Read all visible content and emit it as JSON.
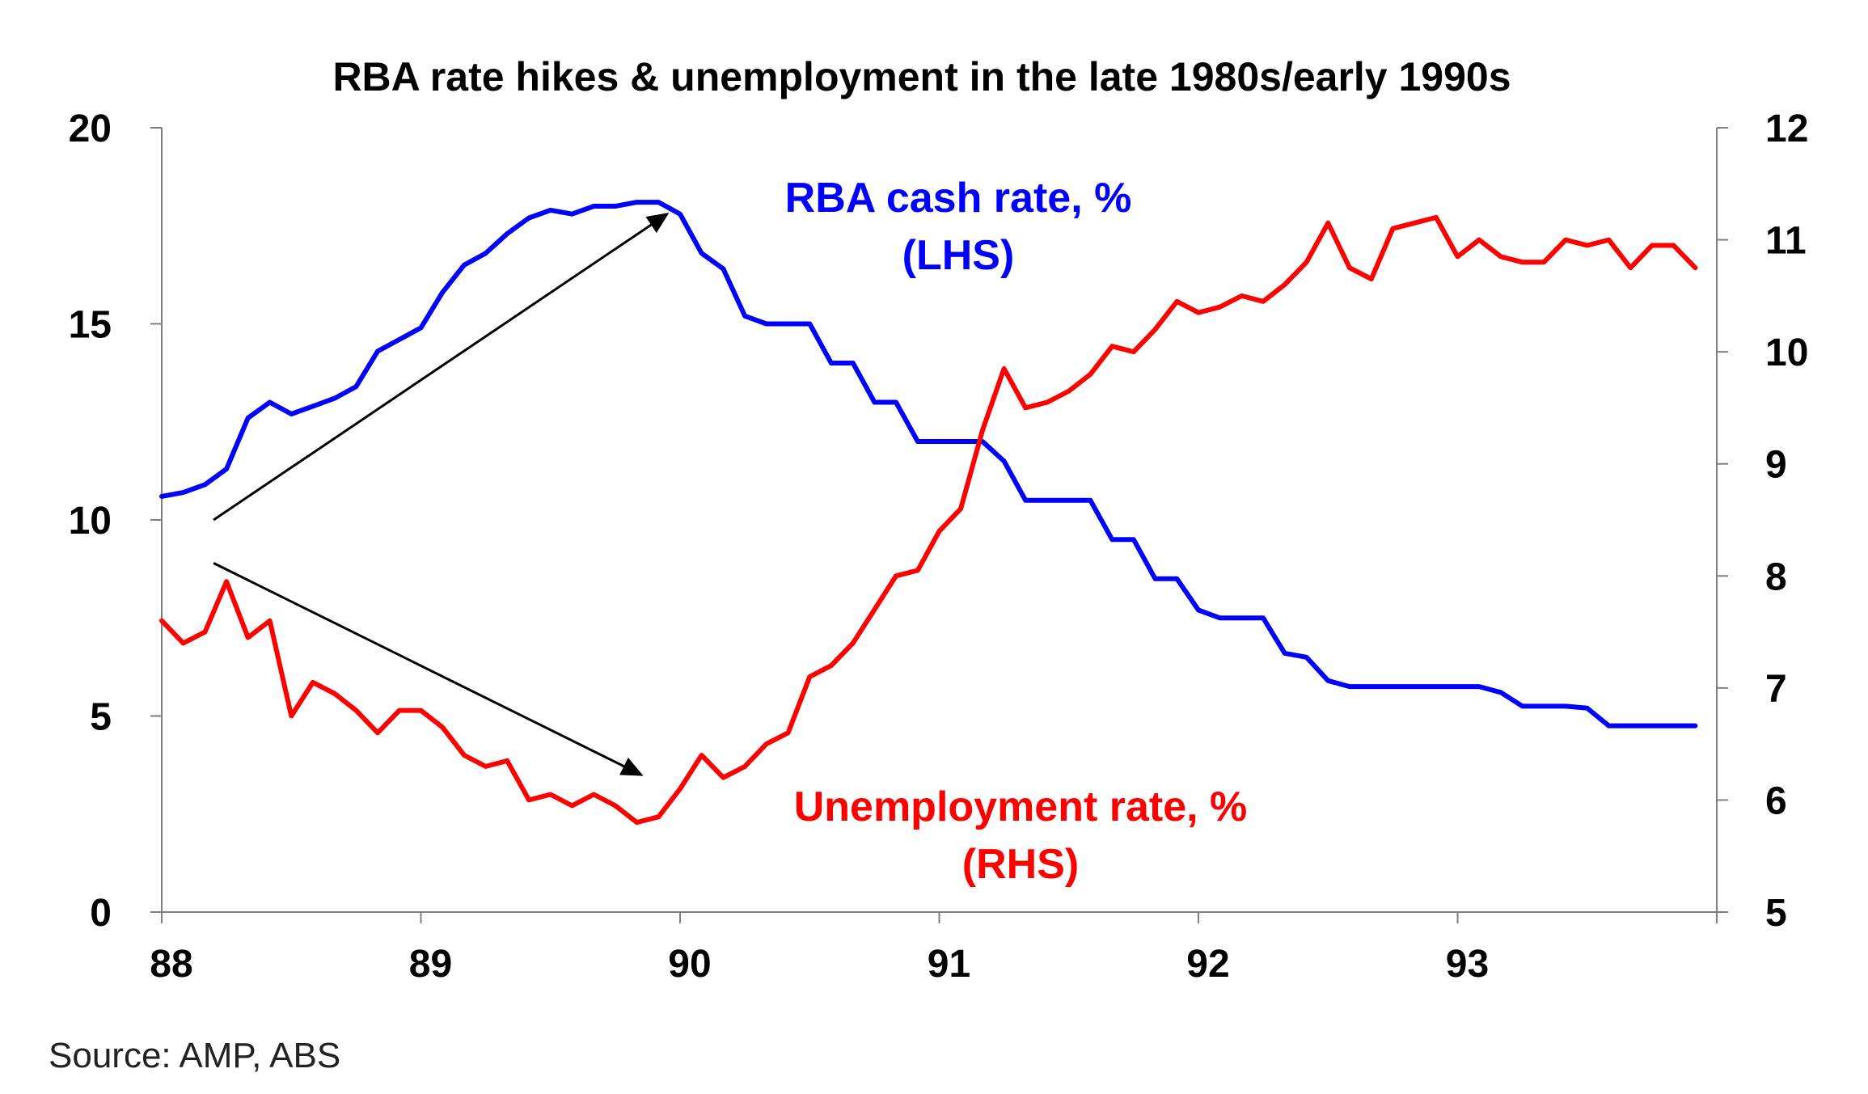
{
  "chart_data": {
    "type": "line",
    "title": "RBA rate hikes & unemployment in the late 1980s/early 1990s",
    "source": "Source: AMP, ABS",
    "x_ticks": [
      "88",
      "89",
      "90",
      "91",
      "92",
      "93"
    ],
    "xlim": [
      1988.0,
      1994.0
    ],
    "left_axis": {
      "ylim": [
        0,
        20
      ],
      "ticks": [
        "0",
        "5",
        "10",
        "15",
        "20"
      ]
    },
    "right_axis": {
      "ylim": [
        5,
        12
      ],
      "ticks": [
        "5",
        "6",
        "7",
        "8",
        "9",
        "10",
        "11",
        "12"
      ]
    },
    "grid": false,
    "series": [
      {
        "name": "RBA cash rate, %",
        "label_line2": "(LHS)",
        "axis": "left",
        "color": "#0000ff",
        "x": [
          1988.0,
          1988.083,
          1988.167,
          1988.25,
          1988.333,
          1988.417,
          1988.5,
          1988.583,
          1988.667,
          1988.75,
          1988.833,
          1988.917,
          1989.0,
          1989.083,
          1989.167,
          1989.25,
          1989.333,
          1989.417,
          1989.5,
          1989.583,
          1989.667,
          1989.75,
          1989.833,
          1989.917,
          1990.0,
          1990.083,
          1990.167,
          1990.25,
          1990.333,
          1990.417,
          1990.5,
          1990.583,
          1990.667,
          1990.75,
          1990.833,
          1990.917,
          1991.0,
          1991.083,
          1991.167,
          1991.25,
          1991.333,
          1991.417,
          1991.5,
          1991.583,
          1991.667,
          1991.75,
          1991.833,
          1991.917,
          1992.0,
          1992.083,
          1992.167,
          1992.25,
          1992.333,
          1992.417,
          1992.5,
          1992.583,
          1992.667,
          1992.75,
          1992.833,
          1992.917,
          1993.0,
          1993.083,
          1993.167,
          1993.25,
          1993.333,
          1993.417,
          1993.5,
          1993.583,
          1993.667,
          1993.75,
          1993.833,
          1993.917
        ],
        "values": [
          10.6,
          10.7,
          10.9,
          11.3,
          12.6,
          13.0,
          12.7,
          12.9,
          13.1,
          13.4,
          14.3,
          14.6,
          14.9,
          15.8,
          16.5,
          16.8,
          17.3,
          17.7,
          17.9,
          17.8,
          18.0,
          18.0,
          18.1,
          18.1,
          17.8,
          16.8,
          16.4,
          15.2,
          15.0,
          15.0,
          15.0,
          14.0,
          14.0,
          13.0,
          13.0,
          12.0,
          12.0,
          12.0,
          12.0,
          11.5,
          10.5,
          10.5,
          10.5,
          10.5,
          9.5,
          9.5,
          8.5,
          8.5,
          7.7,
          7.5,
          7.5,
          7.5,
          6.6,
          6.5,
          5.9,
          5.75,
          5.75,
          5.75,
          5.75,
          5.75,
          5.75,
          5.75,
          5.6,
          5.25,
          5.25,
          5.25,
          5.2,
          4.75,
          4.75,
          4.75,
          4.75,
          4.75
        ]
      },
      {
        "name": "Unemployment rate, %",
        "label_line2": "(RHS)",
        "axis": "right",
        "color": "#ff0000",
        "x": [
          1988.0,
          1988.083,
          1988.167,
          1988.25,
          1988.333,
          1988.417,
          1988.5,
          1988.583,
          1988.667,
          1988.75,
          1988.833,
          1988.917,
          1989.0,
          1989.083,
          1989.167,
          1989.25,
          1989.333,
          1989.417,
          1989.5,
          1989.583,
          1989.667,
          1989.75,
          1989.833,
          1989.917,
          1990.0,
          1990.083,
          1990.167,
          1990.25,
          1990.333,
          1990.417,
          1990.5,
          1990.583,
          1990.667,
          1990.75,
          1990.833,
          1990.917,
          1991.0,
          1991.083,
          1991.167,
          1991.25,
          1991.333,
          1991.417,
          1991.5,
          1991.583,
          1991.667,
          1991.75,
          1991.833,
          1991.917,
          1992.0,
          1992.083,
          1992.167,
          1992.25,
          1992.333,
          1992.417,
          1992.5,
          1992.583,
          1992.667,
          1992.75,
          1992.833,
          1992.917,
          1993.0,
          1993.083,
          1993.167,
          1993.25,
          1993.333,
          1993.417,
          1993.5,
          1993.583,
          1993.667,
          1993.75,
          1993.833,
          1993.917
        ],
        "values": [
          7.6,
          7.4,
          7.5,
          7.95,
          7.45,
          7.6,
          6.75,
          7.05,
          6.95,
          6.8,
          6.6,
          6.8,
          6.8,
          6.65,
          6.4,
          6.3,
          6.35,
          6.0,
          6.05,
          5.95,
          6.05,
          5.95,
          5.8,
          5.85,
          6.1,
          6.4,
          6.2,
          6.3,
          6.5,
          6.6,
          7.1,
          7.2,
          7.4,
          7.7,
          8.0,
          8.05,
          8.4,
          8.6,
          9.3,
          9.85,
          9.5,
          9.55,
          9.65,
          9.8,
          10.05,
          10.0,
          10.2,
          10.45,
          10.35,
          10.4,
          10.5,
          10.45,
          10.6,
          10.8,
          11.15,
          10.75,
          10.65,
          11.1,
          11.15,
          11.2,
          10.85,
          11.0,
          10.85,
          10.8,
          10.8,
          11.0,
          10.95,
          11.0,
          10.75,
          10.95,
          10.95,
          10.75
        ]
      }
    ],
    "annotations": [
      {
        "type": "arrow",
        "color": "#000000",
        "from": {
          "x": 1988.2,
          "y": 10.0,
          "axis": "left"
        },
        "to": {
          "x": 1989.95,
          "y": 17.8,
          "axis": "left"
        }
      },
      {
        "type": "arrow",
        "color": "#000000",
        "from": {
          "x": 1988.2,
          "y": 8.9,
          "axis": "left"
        },
        "to": {
          "x": 1989.85,
          "y": 3.5,
          "axis": "left"
        }
      }
    ]
  }
}
